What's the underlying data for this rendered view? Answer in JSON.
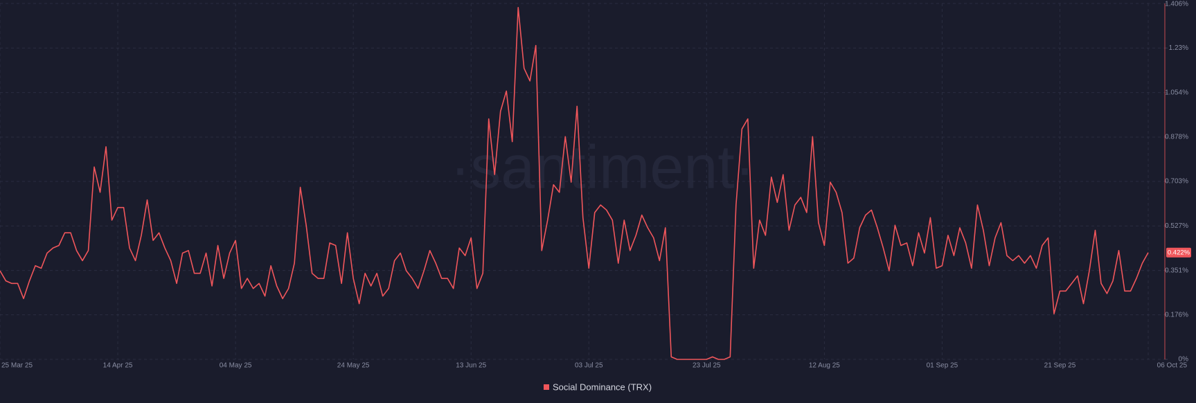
{
  "chart_data": {
    "type": "line",
    "watermark": "·santiment·",
    "x": [
      "2025-03-25",
      "2025-03-26",
      "2025-03-27",
      "2025-03-28",
      "2025-03-29",
      "2025-03-30",
      "2025-03-31",
      "2025-04-01",
      "2025-04-02",
      "2025-04-03",
      "2025-04-04",
      "2025-04-05",
      "2025-04-06",
      "2025-04-07",
      "2025-04-08",
      "2025-04-09",
      "2025-04-10",
      "2025-04-11",
      "2025-04-12",
      "2025-04-13",
      "2025-04-14",
      "2025-04-15",
      "2025-04-16",
      "2025-04-17",
      "2025-04-18",
      "2025-04-19",
      "2025-04-20",
      "2025-04-21",
      "2025-04-22",
      "2025-04-23",
      "2025-04-24",
      "2025-04-25",
      "2025-04-26",
      "2025-04-27",
      "2025-04-28",
      "2025-04-29",
      "2025-04-30",
      "2025-05-01",
      "2025-05-02",
      "2025-05-03",
      "2025-05-04",
      "2025-05-05",
      "2025-05-06",
      "2025-05-07",
      "2025-05-08",
      "2025-05-09",
      "2025-05-10",
      "2025-05-11",
      "2025-05-12",
      "2025-05-13",
      "2025-05-14",
      "2025-05-15",
      "2025-05-16",
      "2025-05-17",
      "2025-05-18",
      "2025-05-19",
      "2025-05-20",
      "2025-05-21",
      "2025-05-22",
      "2025-05-23",
      "2025-05-24",
      "2025-05-25",
      "2025-05-26",
      "2025-05-27",
      "2025-05-28",
      "2025-05-29",
      "2025-05-30",
      "2025-05-31",
      "2025-06-01",
      "2025-06-02",
      "2025-06-03",
      "2025-06-04",
      "2025-06-05",
      "2025-06-06",
      "2025-06-07",
      "2025-06-08",
      "2025-06-09",
      "2025-06-10",
      "2025-06-11",
      "2025-06-12",
      "2025-06-13",
      "2025-06-14",
      "2025-06-15",
      "2025-06-16",
      "2025-06-17",
      "2025-06-18",
      "2025-06-19",
      "2025-06-20",
      "2025-06-21",
      "2025-06-22",
      "2025-06-23",
      "2025-06-24",
      "2025-06-25",
      "2025-06-26",
      "2025-06-27",
      "2025-06-28",
      "2025-06-29",
      "2025-06-30",
      "2025-07-01",
      "2025-07-02",
      "2025-07-03",
      "2025-07-04",
      "2025-07-05",
      "2025-07-06",
      "2025-07-07",
      "2025-07-08",
      "2025-07-09",
      "2025-07-10",
      "2025-07-11",
      "2025-07-12",
      "2025-07-13",
      "2025-07-14",
      "2025-07-15",
      "2025-07-16",
      "2025-07-17",
      "2025-07-18",
      "2025-07-19",
      "2025-07-20",
      "2025-07-21",
      "2025-07-22",
      "2025-07-23",
      "2025-07-24",
      "2025-07-25",
      "2025-07-26",
      "2025-07-27",
      "2025-07-28",
      "2025-07-29",
      "2025-07-30",
      "2025-07-31",
      "2025-08-01",
      "2025-08-02",
      "2025-08-03",
      "2025-08-04",
      "2025-08-05",
      "2025-08-06",
      "2025-08-07",
      "2025-08-08",
      "2025-08-09",
      "2025-08-10",
      "2025-08-11",
      "2025-08-12",
      "2025-08-13",
      "2025-08-14",
      "2025-08-15",
      "2025-08-16",
      "2025-08-17",
      "2025-08-18",
      "2025-08-19",
      "2025-08-20",
      "2025-08-21",
      "2025-08-22",
      "2025-08-23",
      "2025-08-24",
      "2025-08-25",
      "2025-08-26",
      "2025-08-27",
      "2025-08-28",
      "2025-08-29",
      "2025-08-30",
      "2025-08-31",
      "2025-09-01",
      "2025-09-02",
      "2025-09-03",
      "2025-09-04",
      "2025-09-05",
      "2025-09-06",
      "2025-09-07",
      "2025-09-08",
      "2025-09-09",
      "2025-09-10",
      "2025-09-11",
      "2025-09-12",
      "2025-09-13",
      "2025-09-14",
      "2025-09-15",
      "2025-09-16",
      "2025-09-17",
      "2025-09-18",
      "2025-09-19",
      "2025-09-20",
      "2025-09-21",
      "2025-09-22",
      "2025-09-23",
      "2025-09-24",
      "2025-09-25",
      "2025-09-26",
      "2025-09-27",
      "2025-09-28",
      "2025-09-29",
      "2025-09-30",
      "2025-10-01",
      "2025-10-02",
      "2025-10-03",
      "2025-10-04",
      "2025-10-05",
      "2025-10-06"
    ],
    "series": [
      {
        "name": "Social Dominance (TRX)",
        "color": "#f0565b",
        "values": [
          0.35,
          0.31,
          0.3,
          0.3,
          0.24,
          0.31,
          0.37,
          0.36,
          0.42,
          0.44,
          0.45,
          0.5,
          0.5,
          0.43,
          0.39,
          0.43,
          0.76,
          0.66,
          0.84,
          0.55,
          0.6,
          0.6,
          0.44,
          0.39,
          0.49,
          0.63,
          0.47,
          0.5,
          0.44,
          0.39,
          0.3,
          0.42,
          0.43,
          0.34,
          0.34,
          0.42,
          0.29,
          0.45,
          0.32,
          0.42,
          0.47,
          0.28,
          0.32,
          0.28,
          0.3,
          0.25,
          0.37,
          0.29,
          0.24,
          0.28,
          0.38,
          0.68,
          0.53,
          0.34,
          0.32,
          0.32,
          0.46,
          0.45,
          0.3,
          0.5,
          0.32,
          0.22,
          0.34,
          0.29,
          0.34,
          0.25,
          0.28,
          0.39,
          0.42,
          0.35,
          0.32,
          0.28,
          0.35,
          0.43,
          0.38,
          0.32,
          0.32,
          0.28,
          0.44,
          0.41,
          0.48,
          0.28,
          0.34,
          0.95,
          0.73,
          0.98,
          1.06,
          0.86,
          1.39,
          1.15,
          1.1,
          1.24,
          0.43,
          0.55,
          0.69,
          0.66,
          0.88,
          0.7,
          1.0,
          0.56,
          0.36,
          0.58,
          0.61,
          0.59,
          0.55,
          0.38,
          0.55,
          0.43,
          0.49,
          0.57,
          0.52,
          0.48,
          0.39,
          0.52,
          0.01,
          0,
          0,
          0,
          0,
          0,
          0,
          0.01,
          0,
          0,
          0.01,
          0.61,
          0.91,
          0.95,
          0.36,
          0.55,
          0.49,
          0.72,
          0.62,
          0.73,
          0.51,
          0.61,
          0.64,
          0.58,
          0.88,
          0.54,
          0.45,
          0.7,
          0.66,
          0.58,
          0.38,
          0.4,
          0.52,
          0.57,
          0.59,
          0.52,
          0.44,
          0.35,
          0.53,
          0.45,
          0.46,
          0.37,
          0.5,
          0.42,
          0.56,
          0.36,
          0.37,
          0.49,
          0.41,
          0.52,
          0.46,
          0.36,
          0.61,
          0.51,
          0.37,
          0.48,
          0.54,
          0.41,
          0.39,
          0.41,
          0.38,
          0.41,
          0.36,
          0.45,
          0.48,
          0.18,
          0.27,
          0.27,
          0.3,
          0.33,
          0.22,
          0.35,
          0.51,
          0.3,
          0.26,
          0.31,
          0.43,
          0.27,
          0.27,
          0.32,
          0.38,
          0.422
        ]
      }
    ],
    "current_value": {
      "value": 0.422,
      "label": "0.422%"
    },
    "ylim": [
      0,
      1.406
    ],
    "yticks": [
      {
        "value": 0,
        "label": "0%"
      },
      {
        "value": 0.176,
        "label": "0.176%"
      },
      {
        "value": 0.351,
        "label": "0.351%"
      },
      {
        "value": 0.527,
        "label": "0.527%"
      },
      {
        "value": 0.703,
        "label": "0.703%"
      },
      {
        "value": 0.878,
        "label": "0.878%"
      },
      {
        "value": 1.054,
        "label": "1.054%"
      },
      {
        "value": 1.23,
        "label": "1.23%"
      },
      {
        "value": 1.406,
        "label": "1.406%"
      }
    ],
    "xticks": [
      {
        "value": "2025-03-25",
        "label": "25 Mar 25"
      },
      {
        "value": "2025-04-14",
        "label": "14 Apr 25"
      },
      {
        "value": "2025-05-04",
        "label": "04 May 25"
      },
      {
        "value": "2025-05-24",
        "label": "24 May 25"
      },
      {
        "value": "2025-06-13",
        "label": "13 Jun 25"
      },
      {
        "value": "2025-07-03",
        "label": "03 Jul 25"
      },
      {
        "value": "2025-07-23",
        "label": "23 Jul 25"
      },
      {
        "value": "2025-08-12",
        "label": "12 Aug 25"
      },
      {
        "value": "2025-09-01",
        "label": "01 Sep 25"
      },
      {
        "value": "2025-09-21",
        "label": "21 Sep 25"
      },
      {
        "value": "2025-10-06",
        "label": "06 Oct 25"
      }
    ],
    "grid": true,
    "legend": "bottom"
  }
}
